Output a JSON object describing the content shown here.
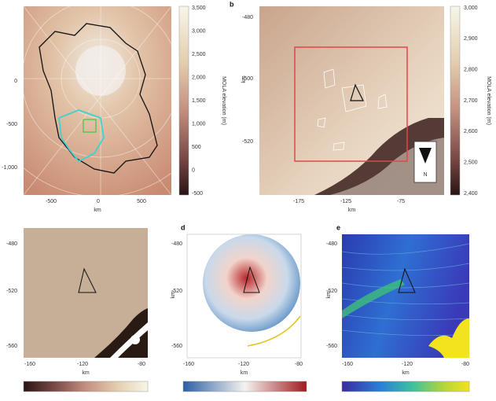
{
  "panels": [
    {
      "xticks": [
        "-500",
        "0",
        "500"
      ],
      "yticks": [
        "0",
        "-500",
        "-1,000"
      ],
      "x_label": "km",
      "colorbar": {
        "label": "MOLA elevation (m)",
        "ticks": [
          "3,500",
          "3,000",
          "2,500",
          "2,000",
          "1,500",
          "1,000",
          "500",
          "0",
          "-500"
        ]
      }
    },
    {
      "label": "b",
      "xticks": [
        "-175",
        "-125",
        "-75"
      ],
      "yticks": [
        "-480",
        "-500",
        "-520"
      ],
      "x_label": "km",
      "y_label": "km",
      "north": "N",
      "colorbar": {
        "label": "MOLA elevation (m)",
        "ticks": [
          "3,000",
          "2,900",
          "2,800",
          "2,700",
          "2,600",
          "2,500",
          "2,400"
        ]
      }
    },
    {
      "xticks": [
        "-160",
        "-120",
        "-80"
      ],
      "yticks": [
        "-480",
        "-520",
        "-560"
      ],
      "x_label": "km"
    },
    {
      "label": "d",
      "xticks": [
        "-160",
        "-120",
        "-80"
      ],
      "yticks": [
        "-480",
        "-520",
        "-560"
      ],
      "x_label": "km",
      "y_label": "km"
    },
    {
      "label": "e",
      "xticks": [
        "-160",
        "-120",
        "-80"
      ],
      "yticks": [
        "-480",
        "-520",
        "-560"
      ],
      "x_label": "km",
      "y_label": "km"
    }
  ]
}
